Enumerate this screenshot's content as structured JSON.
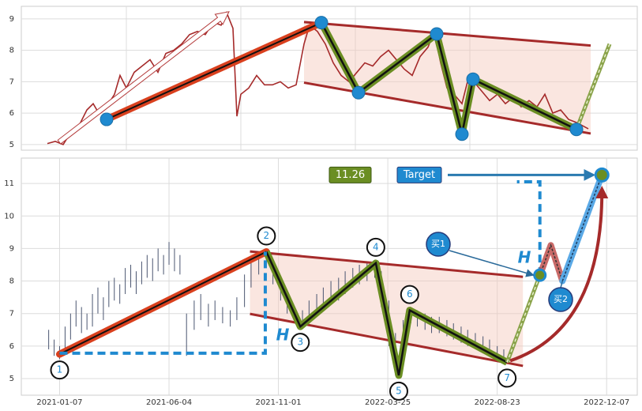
{
  "chart_data": [
    {
      "type": "line",
      "color": "#a52a2a",
      "grid": true,
      "xlim": [
        27,
        807
      ],
      "xticks": [
        160,
        305,
        450,
        595
      ],
      "ylim": [
        4.82,
        9.4
      ],
      "yticks": [
        5,
        6,
        7,
        8,
        9
      ],
      "x": [
        60,
        70,
        80,
        90,
        100,
        110,
        118,
        125,
        135,
        145,
        152,
        160,
        170,
        180,
        190,
        200,
        210,
        220,
        230,
        240,
        250,
        260,
        270,
        280,
        287,
        295,
        300,
        305,
        315,
        325,
        335,
        345,
        355,
        365,
        375,
        385,
        392,
        402,
        412,
        422,
        432,
        442,
        452,
        462,
        472,
        482,
        492,
        502,
        512,
        522,
        532,
        542,
        550,
        558,
        566,
        575,
        585,
        592,
        600,
        610,
        620,
        630,
        640,
        650,
        660,
        670,
        680,
        690,
        700,
        710,
        720,
        730,
        745
      ],
      "values": [
        5.03,
        5.1,
        5.0,
        5.4,
        5.6,
        6.1,
        6.3,
        6.0,
        6.2,
        6.6,
        7.2,
        6.8,
        7.3,
        7.5,
        7.7,
        7.3,
        7.9,
        8.0,
        8.2,
        8.5,
        8.6,
        8.5,
        8.9,
        8.8,
        9.2,
        8.7,
        5.9,
        6.6,
        6.8,
        7.2,
        6.9,
        6.9,
        7.0,
        6.8,
        6.9,
        8.2,
        8.8,
        8.6,
        8.2,
        7.6,
        7.2,
        7.0,
        7.3,
        7.6,
        7.5,
        7.8,
        8.0,
        7.7,
        7.4,
        7.2,
        7.8,
        8.1,
        8.6,
        7.6,
        6.8,
        6.6,
        6.3,
        7.0,
        7.0,
        6.7,
        6.4,
        6.6,
        6.3,
        6.5,
        6.2,
        6.4,
        6.2,
        6.6,
        6.0,
        6.1,
        5.8,
        5.7,
        5.5
      ],
      "trend": {
        "x": [
          135,
          407
        ],
        "values": [
          5.8,
          8.88
        ]
      },
      "pattern": {
        "x": [
          407,
          454,
          553,
          585,
          599,
          730
        ],
        "values": [
          8.88,
          6.65,
          8.52,
          5.33,
          7.08,
          5.48
        ]
      },
      "channel": {
        "x": [
          385,
          748
        ],
        "upper": [
          8.9,
          8.15
        ],
        "lower": [
          6.97,
          5.35
        ]
      },
      "projection": {
        "x": [
          730,
          772
        ],
        "values": [
          5.48,
          8.2
        ]
      },
      "arrow": {
        "x": [
          75,
          290
        ],
        "values": [
          5.08,
          9.23
        ]
      }
    },
    {
      "type": "range",
      "color": "#4a5570",
      "grid": true,
      "xlim": [
        -35,
        528
      ],
      "xticks": [
        {
          "value": 0,
          "label": "2021-01-07"
        },
        {
          "value": 100,
          "label": "2021-06-04"
        },
        {
          "value": 200,
          "label": "2021-11-01"
        },
        {
          "value": 300,
          "label": "2022-03-25"
        },
        {
          "value": 400,
          "label": "2022-08-23"
        },
        {
          "value": 500,
          "label": "2022-12-07"
        }
      ],
      "ylim": [
        4.49,
        11.78
      ],
      "yticks": [
        5,
        6,
        7,
        8,
        9,
        10,
        11
      ],
      "x": [
        -10,
        -5,
        0,
        5,
        10,
        15,
        20,
        25,
        30,
        35,
        40,
        45,
        50,
        55,
        60,
        65,
        70,
        75,
        80,
        85,
        90,
        95,
        100,
        105,
        110,
        116,
        123,
        129,
        136,
        142,
        149,
        156,
        162,
        169,
        175,
        182,
        189,
        195,
        202,
        208,
        215,
        222,
        228,
        235,
        241,
        248,
        255,
        261,
        268,
        274,
        281,
        288,
        294,
        301,
        307,
        314,
        321,
        327,
        334,
        340,
        347,
        354,
        360,
        367,
        373,
        380,
        387,
        393,
        400,
        406
      ],
      "lows": [
        5.9,
        5.7,
        5.6,
        5.9,
        6.2,
        6.6,
        6.4,
        6.5,
        6.6,
        7.0,
        6.8,
        7.2,
        7.4,
        7.3,
        7.6,
        7.8,
        7.6,
        7.9,
        8.1,
        8.0,
        8.3,
        8.2,
        8.5,
        8.3,
        8.2,
        5.7,
        6.5,
        6.8,
        6.6,
        6.8,
        6.7,
        6.6,
        6.8,
        7.2,
        7.8,
        8.2,
        8.4,
        7.9,
        7.4,
        7.0,
        6.7,
        6.6,
        6.8,
        7.0,
        7.1,
        7.3,
        7.4,
        7.6,
        7.8,
        7.9,
        8.0,
        8.1,
        7.2,
        6.0,
        5.1,
        5.6,
        6.7,
        6.6,
        6.5,
        6.4,
        6.4,
        6.3,
        6.2,
        6.1,
        6.0,
        5.9,
        5.8,
        5.7,
        5.6,
        5.5
      ],
      "highs": [
        6.5,
        6.2,
        6.0,
        6.6,
        7.0,
        7.4,
        7.2,
        7.0,
        7.6,
        7.8,
        7.5,
        8.0,
        8.1,
        7.9,
        8.4,
        8.5,
        8.3,
        8.6,
        8.8,
        8.7,
        9.0,
        8.8,
        9.2,
        9.0,
        8.8,
        7.0,
        7.4,
        7.6,
        7.3,
        7.4,
        7.2,
        7.1,
        7.5,
        8.2,
        8.7,
        8.9,
        8.9,
        8.6,
        8.0,
        7.5,
        7.2,
        7.1,
        7.4,
        7.6,
        7.8,
        8.0,
        8.1,
        8.3,
        8.4,
        8.5,
        8.6,
        8.6,
        8.3,
        7.4,
        6.4,
        6.8,
        7.2,
        7.1,
        7.0,
        6.9,
        6.9,
        6.8,
        6.7,
        6.6,
        6.5,
        6.4,
        6.3,
        6.2,
        6.0,
        5.9
      ],
      "trend": {
        "x": [
          0,
          189
        ],
        "values": [
          5.75,
          8.9
        ]
      },
      "pattern": {
        "x": [
          189,
          220,
          289,
          310,
          320,
          409
        ],
        "values": [
          8.9,
          6.6,
          8.55,
          5.1,
          7.1,
          5.5
        ]
      },
      "point_labels": [
        "1",
        "2",
        "3",
        "4",
        "5",
        "6",
        "7"
      ],
      "channel": {
        "x": [
          174,
          423.5
        ],
        "upper": [
          8.91,
          8.13
        ],
        "lower": [
          6.99,
          5.39
        ]
      },
      "base": {
        "x": [
          0,
          188
        ],
        "values": [
          5.78,
          8.9
        ]
      },
      "measure": {
        "x": [
          418,
          439
        ],
        "values": [
          8.18,
          11.05
        ]
      },
      "height_labels": [
        "H",
        "H"
      ],
      "projection": {
        "x": [
          409,
          439
        ],
        "values": [
          5.5,
          8.18
        ]
      },
      "pullback": {
        "x": [
          439,
          449,
          459.6
        ],
        "values": [
          8.18,
          9.1,
          8.0
        ]
      },
      "target_line": {
        "x": [
          459.6,
          495.7
        ],
        "values": [
          8.0,
          11.26
        ]
      },
      "target_value": 11.26,
      "target_label": "Target",
      "buy_labels": [
        "买1",
        "买2"
      ]
    }
  ]
}
